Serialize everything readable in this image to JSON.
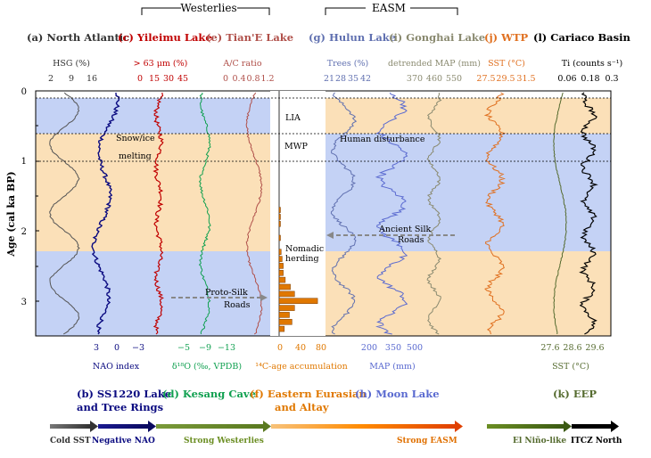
{
  "colors": {
    "north_atlantic": "#555555",
    "nao": "#0a0a80",
    "yileimu": "#c00000",
    "tianE": "#b0504a",
    "kesang": "#10a050",
    "accum": "#e07800",
    "hulun": "#6070b0",
    "gonghai": "#8a8a70",
    "moon": "#5a6ad0",
    "wtp": "#e07020",
    "eep": "#556b2f",
    "cariaco": "#000000",
    "band_blue": "#c4d2f5",
    "band_orange": "#fbe0b8"
  },
  "top_headers": {
    "westerlies": "Westerlies",
    "easm": "EASM"
  },
  "top_titles": [
    {
      "id": "a",
      "letter": "(a)",
      "name": "North Atlantic",
      "color": "#333333"
    },
    {
      "id": "c",
      "letter": "(c)",
      "name": "Yileimu Lake",
      "color": "#c00000"
    },
    {
      "id": "e",
      "letter": "(e)",
      "name": "Tian'E Lake",
      "color": "#b0504a"
    },
    {
      "id": "g",
      "letter": "(g)",
      "name": "Hulun Lake",
      "color": "#6070b0"
    },
    {
      "id": "i",
      "letter": "(i)",
      "name": "Gonghai Lake",
      "color": "#8a8a70"
    },
    {
      "id": "j",
      "letter": "(j)",
      "name": "WTP",
      "color": "#e07020"
    },
    {
      "id": "l",
      "letter": "(l)",
      "name": "Cariaco Basin",
      "color": "#000000"
    }
  ],
  "bottom_titles": [
    {
      "id": "b",
      "text": "(b) SS1220 Lake",
      "text2": "and Tree Rings",
      "color": "#0a0a80"
    },
    {
      "id": "d",
      "text": "(d) Kesang Cave",
      "color": "#10a050"
    },
    {
      "id": "f",
      "text": "(f) Eastern Eurasian",
      "text2": "and Altay",
      "color": "#e07800"
    },
    {
      "id": "h",
      "text": "(h) Moon Lake",
      "color": "#5a6ad0"
    },
    {
      "id": "k",
      "text": "(k) EEP",
      "color": "#556b2f"
    }
  ],
  "top_axes": [
    {
      "id": "hsg",
      "label": "HSG (%)",
      "ticks": [
        "2",
        "9",
        "16"
      ],
      "color": "#333333"
    },
    {
      "id": "grain",
      "label": "> 63 μm (%)",
      "ticks": [
        "0",
        "15",
        "30",
        "45"
      ],
      "color": "#c00000"
    },
    {
      "id": "ac",
      "label": "A/C ratio",
      "ticks": [
        "0",
        "0.4",
        "0.8",
        "1.2"
      ],
      "color": "#b0504a"
    },
    {
      "id": "trees",
      "label": "Trees (%)",
      "ticks": [
        "21",
        "28",
        "35",
        "42"
      ],
      "color": "#6070b0"
    },
    {
      "id": "dmap",
      "label": "detrended MAP (mm)",
      "ticks": [
        "370",
        "460",
        "550"
      ],
      "color": "#8a8a70"
    },
    {
      "id": "sst_top",
      "label": "SST (°C)",
      "ticks": [
        "27.5",
        "29.5",
        "31.5"
      ],
      "color": "#e07020"
    },
    {
      "id": "ti",
      "label": "Ti (counts s⁻¹)",
      "ticks": [
        "0.06",
        "0.18",
        "0.3"
      ],
      "color": "#000000"
    }
  ],
  "bottom_axes": [
    {
      "id": "nao",
      "label": "NAO index",
      "ticks": [
        "3",
        "0",
        "−3"
      ],
      "color": "#0a0a80"
    },
    {
      "id": "d18o",
      "label": "δ¹⁸O (‰, VPDB)",
      "ticks": [
        "−5",
        "−9",
        "−13"
      ],
      "color": "#10a050"
    },
    {
      "id": "c14",
      "label": "¹⁴C-age accumulation",
      "ticks": [
        "0",
        "40",
        "80"
      ],
      "color": "#e07800"
    },
    {
      "id": "map",
      "label": "MAP (mm)",
      "ticks": [
        "200",
        "350",
        "500"
      ],
      "color": "#5a6ad0"
    },
    {
      "id": "sst_bot",
      "label": "SST (°C)",
      "ticks": [
        "27.6",
        "28.6",
        "29.6"
      ],
      "color": "#556b2f"
    }
  ],
  "y_axis": {
    "label": "Age (cal ka BP)",
    "ticks": [
      "0",
      "1",
      "2",
      "3"
    ]
  },
  "annotations": {
    "lia": "LIA",
    "mwp": "MWP",
    "snow1": "Snow/ice",
    "snow2": "melting",
    "human": "Human disturbance",
    "silk1": "Ancient Silk",
    "silk2": "Roads",
    "nomad1": "Nomadic",
    "nomad2": "herding",
    "proto1": "Proto-Silk",
    "proto2": "Roads"
  },
  "legend_arrows": [
    {
      "label": "Cold SST",
      "color": "#444444"
    },
    {
      "label": "Negative NAO",
      "color": "#0a0a80"
    },
    {
      "label": "Strong Westerlies",
      "color": "#6b8e23"
    },
    {
      "label": "Strong EASM",
      "color": "#e07000"
    },
    {
      "label": "El Niño-like",
      "color": "#556b2f"
    },
    {
      "label": "ITCZ North",
      "color": "#000000"
    }
  ],
  "chart_data": {
    "type": "line",
    "y_axis_label": "Age (cal ka BP)",
    "y_range": [
      0,
      3.5
    ],
    "reference_lines_ka": [
      0.1,
      0.6,
      1.0
    ],
    "periods": [
      "LIA",
      "MWP"
    ],
    "accumulation_bars": {
      "label": "¹⁴C-age accumulation",
      "age_ka": [
        1.7,
        1.8,
        1.9,
        2.1,
        2.3,
        2.4,
        2.5,
        2.6,
        2.7,
        2.8,
        2.9,
        3.0,
        3.1,
        3.2,
        3.3,
        3.4
      ],
      "values": [
        2,
        2,
        2,
        2,
        4,
        6,
        8,
        8,
        12,
        22,
        30,
        75,
        30,
        20,
        25,
        10
      ]
    }
  }
}
